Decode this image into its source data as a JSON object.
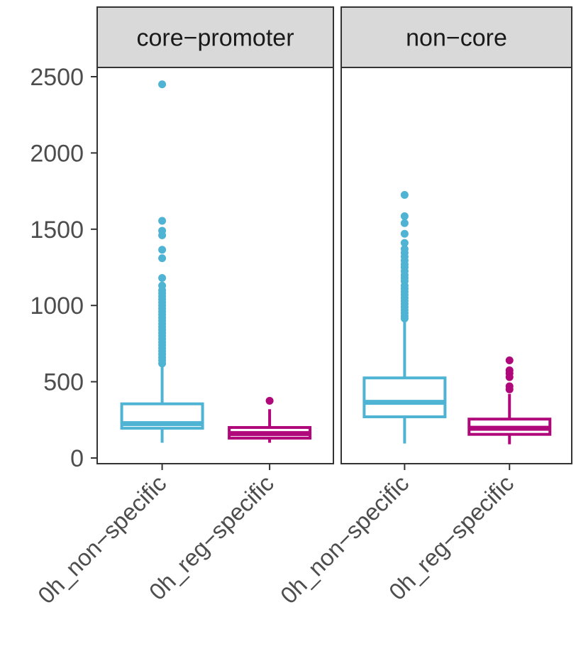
{
  "chart_data": {
    "type": "box",
    "facets": [
      "core−promoter",
      "non−core"
    ],
    "categories": [
      "0h_non−specific",
      "0h_reg−specific"
    ],
    "ylim": [
      0,
      2580
    ],
    "yticks": [
      0,
      500,
      1000,
      1500,
      2000,
      2500
    ],
    "ytick_labels": [
      "0",
      "500",
      "1000",
      "1500",
      "2000",
      "2500"
    ],
    "xlabel": "",
    "ylabel": "",
    "legend": "none",
    "grid": false,
    "colors": {
      "0h_non−specific": "#4fb3d4",
      "0h_reg−specific": "#b0087a"
    },
    "boxes": [
      {
        "facet": "core−promoter",
        "category": "0h_non−specific",
        "whisker_low": 100,
        "q1": 195,
        "median": 225,
        "q3": 355,
        "whisker_high": 600,
        "outliers": [
          2450,
          1555,
          1490,
          1460,
          1365,
          1310,
          1180,
          1130,
          1100,
          1080,
          1060,
          1040,
          1020,
          1000,
          980,
          960,
          940,
          920,
          900,
          880,
          860,
          840,
          820,
          800,
          780,
          760,
          740,
          720,
          700,
          680,
          660,
          640,
          620
        ]
      },
      {
        "facet": "core−promoter",
        "category": "0h_reg−specific",
        "whisker_low": 100,
        "q1": 130,
        "median": 160,
        "q3": 200,
        "whisker_high": 320,
        "outliers": [
          375
        ]
      },
      {
        "facet": "non−core",
        "category": "0h_non−specific",
        "whisker_low": 95,
        "q1": 270,
        "median": 365,
        "q3": 525,
        "whisker_high": 900,
        "outliers": [
          1725,
          1585,
          1540,
          1470,
          1410,
          1370,
          1345,
          1320,
          1295,
          1270,
          1250,
          1225,
          1200,
          1180,
          1160,
          1130,
          1110,
          1090,
          1070,
          1050,
          1030,
          1010,
          990,
          970,
          950,
          930,
          915
        ]
      },
      {
        "facet": "non−core",
        "category": "0h_reg−specific",
        "whisker_low": 90,
        "q1": 155,
        "median": 195,
        "q3": 255,
        "whisker_high": 420,
        "outliers": [
          640,
          575,
          555,
          530,
          470,
          450
        ]
      }
    ]
  }
}
